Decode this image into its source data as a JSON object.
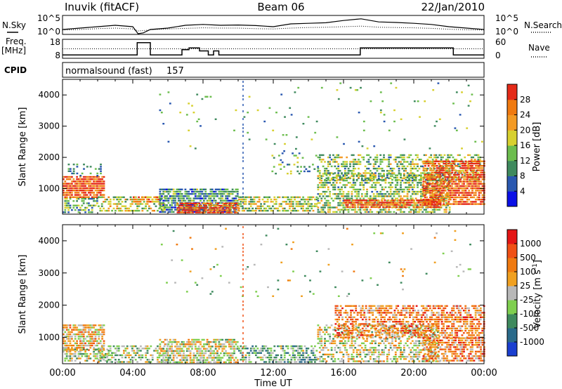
{
  "header": {
    "station": "Inuvik (fitACF)",
    "beam": "Beam 06",
    "date": "22/Jan/2010"
  },
  "chart_data": [
    {
      "type": "line",
      "panel": "noise",
      "left_label": "N.Sky",
      "right_label": "N.Search",
      "left_ticks": [
        "10^5",
        "10^0"
      ],
      "right_ticks": [
        "10^5",
        "10^0"
      ],
      "x": [
        0,
        1,
        2,
        3,
        4,
        4.3,
        4.6,
        5,
        6,
        7,
        8,
        9,
        10,
        11,
        12,
        13,
        14,
        15,
        16,
        17,
        18,
        19,
        20,
        21,
        22,
        23,
        24
      ],
      "sky": [
        1,
        1.5,
        2,
        2.5,
        2,
        -0.5,
        -0.2,
        1,
        1.5,
        2.5,
        2.8,
        2.5,
        2.6,
        2.4,
        2,
        3,
        3.2,
        3.4,
        4.2,
        4.8,
        3.7,
        3.5,
        3.2,
        2.8,
        2,
        1.5,
        1
      ],
      "search": [
        0.8,
        1,
        1.3,
        1.5,
        1.2,
        0.5,
        0.6,
        0.9,
        1.2,
        1.4,
        1.6,
        1.5,
        1.5,
        1.3,
        1.2,
        1.5,
        1.7,
        1.8,
        2,
        2.2,
        1.8,
        1.7,
        1.6,
        1.4,
        1.1,
        0.9,
        0.8
      ]
    },
    {
      "type": "line",
      "panel": "frequency",
      "left_label": "Freq.",
      "left_unit": "[MHz]",
      "right_label": "Nave",
      "left_ticks": [
        "18",
        "8"
      ],
      "right_ticks": [
        "60",
        "0"
      ],
      "freq": [
        {
          "start": 0,
          "end": 4.25,
          "value": 9.5
        },
        {
          "start": 4.25,
          "end": 5.0,
          "value": 16.5
        },
        {
          "start": 5.0,
          "end": 6.8,
          "value": 9.5
        },
        {
          "start": 6.8,
          "end": 7.2,
          "value": 12.5
        },
        {
          "start": 7.2,
          "end": 7.8,
          "value": 13.5
        },
        {
          "start": 7.8,
          "end": 8.3,
          "value": 11.8
        },
        {
          "start": 8.3,
          "end": 8.6,
          "value": 9.5
        },
        {
          "start": 8.6,
          "end": 8.9,
          "value": 11.8
        },
        {
          "start": 8.9,
          "end": 9.2,
          "value": 9.5
        },
        {
          "start": 9.2,
          "end": 16.95,
          "value": 9.5
        },
        {
          "start": 16.95,
          "end": 22.25,
          "value": 13.5
        },
        {
          "start": 22.25,
          "end": 24,
          "value": 9.5
        }
      ],
      "nave_value": 30
    },
    {
      "type": "heatmap",
      "panel": "cpid",
      "label": "CPID",
      "program": "normalsound (fast)",
      "cpid_number": "157"
    },
    {
      "type": "heatmap",
      "panel": "power",
      "ylabel": "Slant Range [km]",
      "ylim": [
        180,
        4500
      ],
      "yticks": [
        1000,
        2000,
        3000,
        4000
      ],
      "xlim": [
        0,
        24
      ],
      "colorbar": {
        "label": "Power [dB]",
        "ticks": [
          "28",
          "24",
          "20",
          "16",
          "12",
          "8",
          "4"
        ],
        "colors": [
          "#0a10e6",
          "#2a58b0",
          "#3f8a5e",
          "#6cbd4e",
          "#d7d02f",
          "#f39a24",
          "#f07a10",
          "#e52a18"
        ]
      },
      "regions": [
        {
          "t0": 0.0,
          "t1": 2.4,
          "r0": 700,
          "r1": 1400,
          "dens": 0.85,
          "val": 0.85
        },
        {
          "t0": 0.0,
          "t1": 2.0,
          "r0": 250,
          "r1": 700,
          "dens": 0.55,
          "val": 0.35
        },
        {
          "t0": 0.3,
          "t1": 2.2,
          "r0": 1400,
          "r1": 1800,
          "dens": 0.25,
          "val": 0.3
        },
        {
          "t0": 2.0,
          "t1": 5.8,
          "r0": 250,
          "r1": 750,
          "dens": 0.45,
          "val": 0.55
        },
        {
          "t0": 4.0,
          "t1": 5.5,
          "r0": 550,
          "r1": 750,
          "dens": 0.7,
          "val": 0.75
        },
        {
          "t0": 5.5,
          "t1": 10.0,
          "r0": 250,
          "r1": 1000,
          "dens": 0.75,
          "val": 0.3
        },
        {
          "t0": 6.5,
          "t1": 10.0,
          "r0": 250,
          "r1": 550,
          "dens": 0.85,
          "val": 0.9
        },
        {
          "t0": 10.0,
          "t1": 14.5,
          "r0": 250,
          "r1": 750,
          "dens": 0.6,
          "val": 0.5
        },
        {
          "t0": 14.5,
          "t1": 22.0,
          "r0": 250,
          "r1": 1500,
          "dens": 0.55,
          "val": 0.45
        },
        {
          "t0": 16.0,
          "t1": 21.5,
          "r0": 400,
          "r1": 650,
          "dens": 0.85,
          "val": 0.9
        },
        {
          "t0": 14.5,
          "t1": 23.8,
          "r0": 1300,
          "r1": 2100,
          "dens": 0.45,
          "val": 0.45
        },
        {
          "t0": 20.5,
          "t1": 24.0,
          "r0": 500,
          "r1": 1900,
          "dens": 0.8,
          "val": 0.85
        },
        {
          "t0": 11.8,
          "t1": 14.5,
          "r0": 1500,
          "r1": 2300,
          "dens": 0.15,
          "val": 0.35
        },
        {
          "t0": 5.5,
          "t1": 24.0,
          "r0": 2300,
          "r1": 4400,
          "dens": 0.02,
          "val": 0.4
        }
      ]
    },
    {
      "type": "heatmap",
      "panel": "velocity",
      "ylabel": "Slant Range [km]",
      "ylim": [
        180,
        4500
      ],
      "yticks": [
        1000,
        2000,
        3000,
        4000
      ],
      "xlim": [
        0,
        24
      ],
      "xlabel": "Time UT",
      "xticks": [
        "00:00",
        "04:00",
        "08:00",
        "12:00",
        "16:00",
        "20:00",
        "00:00"
      ],
      "colorbar": {
        "label": "Velocity [m s",
        "label_superscript": "-1",
        "label_close": "]",
        "ticks": [
          "1000",
          "500",
          "100",
          "25",
          "-25",
          "-100",
          "-500",
          "-1000"
        ],
        "colors": [
          "#1a3fd0",
          "#2a6a8a",
          "#3f8a5e",
          "#7fcf4f",
          "#b8b8b8",
          "#f0a020",
          "#f07a10",
          "#f05015",
          "#e41515"
        ]
      },
      "regions": [
        {
          "t0": 0.0,
          "t1": 2.4,
          "r0": 600,
          "r1": 1400,
          "dens": 0.7,
          "val": 0.6
        },
        {
          "t0": 0.0,
          "t1": 2.5,
          "r0": 250,
          "r1": 650,
          "dens": 0.45,
          "val": 0.45
        },
        {
          "t0": 2.0,
          "t1": 6.0,
          "r0": 250,
          "r1": 750,
          "dens": 0.5,
          "val": 0.45
        },
        {
          "t0": 5.5,
          "t1": 10.0,
          "r0": 250,
          "r1": 950,
          "dens": 0.7,
          "val": 0.5
        },
        {
          "t0": 10.0,
          "t1": 14.5,
          "r0": 250,
          "r1": 750,
          "dens": 0.55,
          "val": 0.35
        },
        {
          "t0": 14.5,
          "t1": 21.5,
          "r0": 250,
          "r1": 1400,
          "dens": 0.45,
          "val": 0.5
        },
        {
          "t0": 15.5,
          "t1": 24.0,
          "r0": 1000,
          "r1": 2000,
          "dens": 0.6,
          "val": 0.72
        },
        {
          "t0": 20.5,
          "t1": 24.0,
          "r0": 250,
          "r1": 1000,
          "dens": 0.65,
          "val": 0.7
        },
        {
          "t0": 5.5,
          "t1": 24.0,
          "r0": 2300,
          "r1": 4400,
          "dens": 0.015,
          "val": 0.5
        }
      ]
    }
  ]
}
